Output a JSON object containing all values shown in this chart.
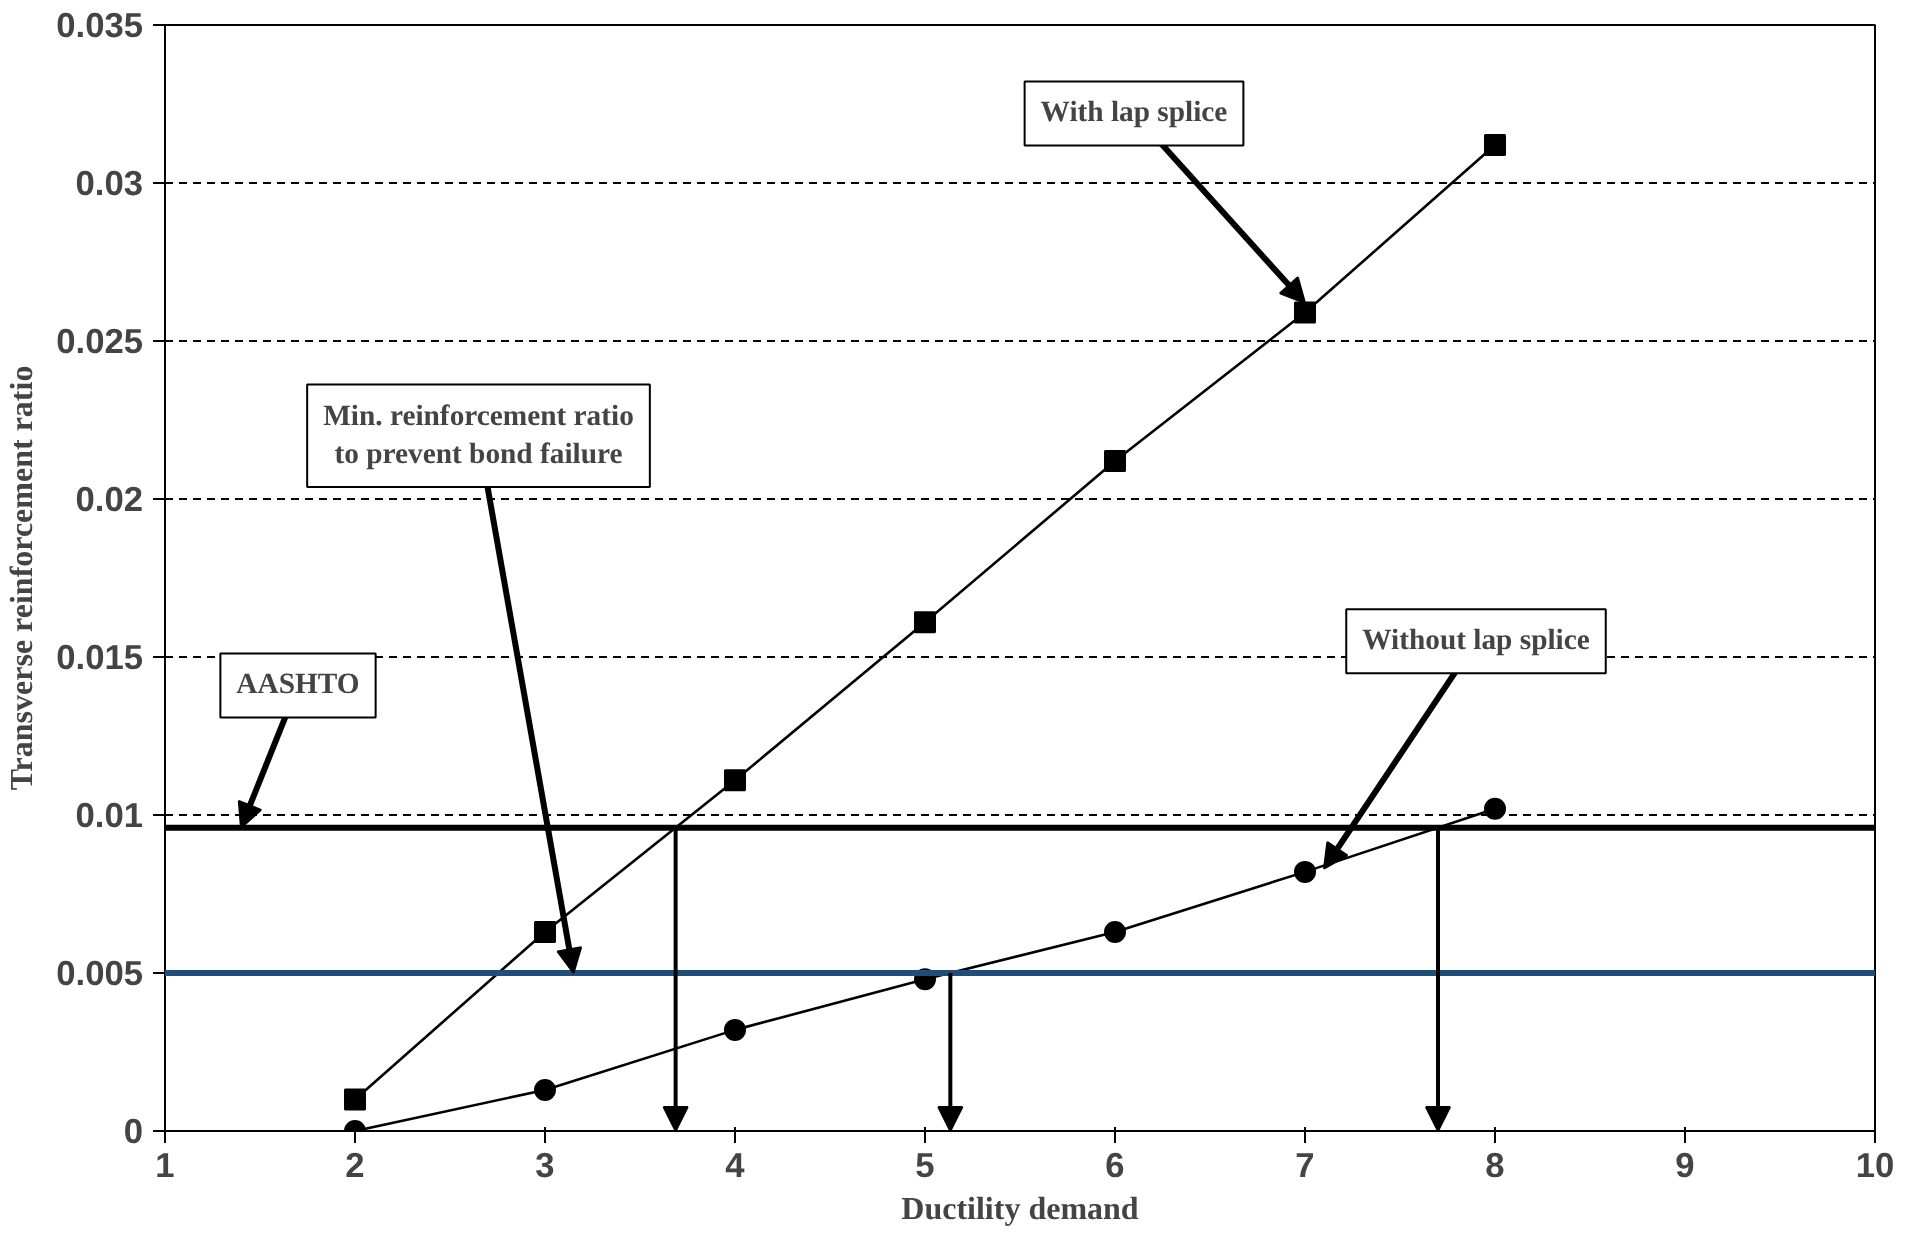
{
  "chart_data": {
    "type": "line",
    "xlabel": "Ductility demand",
    "ylabel": "Transverse reinforcement ratio",
    "x": [
      2,
      3,
      4,
      5,
      6,
      7,
      8
    ],
    "series": [
      {
        "color": "#000000",
        "marker": "square",
        "values": [
          0.001,
          0.0063,
          0.0111,
          0.0161,
          0.0212,
          0.0259,
          0.0312
        ]
      },
      {
        "color": "#000000",
        "marker": "circle",
        "values": [
          0,
          0.0013,
          0.0032,
          0.0048,
          0.0063,
          0.0082,
          0.0102
        ]
      }
    ],
    "xlim": [
      1,
      10
    ],
    "xticks": [
      1,
      2,
      3,
      4,
      5,
      6,
      7,
      8,
      9,
      10
    ],
    "ylim": [
      0,
      0.035
    ],
    "yticks": [
      0,
      0.005,
      0.01,
      0.015,
      0.02,
      0.025,
      0.03,
      0.035
    ],
    "grid": "y",
    "line_style": "solid",
    "ref_lines": [
      {
        "axis": "y",
        "value": 0.0096,
        "color": "#000000"
      },
      {
        "axis": "y",
        "value": 0.005,
        "color": "#1f4e79"
      }
    ],
    "annotations": [
      {
        "text": "With lap splice",
        "x": 7,
        "y": 0.0262
      },
      {
        "text": "Min. reinforcement ratio\nto prevent bond failure",
        "x": 3.15,
        "y": 0.005
      },
      {
        "text": "AASHTO",
        "x": 1.4,
        "y": 0.0096
      },
      {
        "text": "Without lap splice",
        "x": 7.1,
        "y": 0.0083
      }
    ]
  }
}
